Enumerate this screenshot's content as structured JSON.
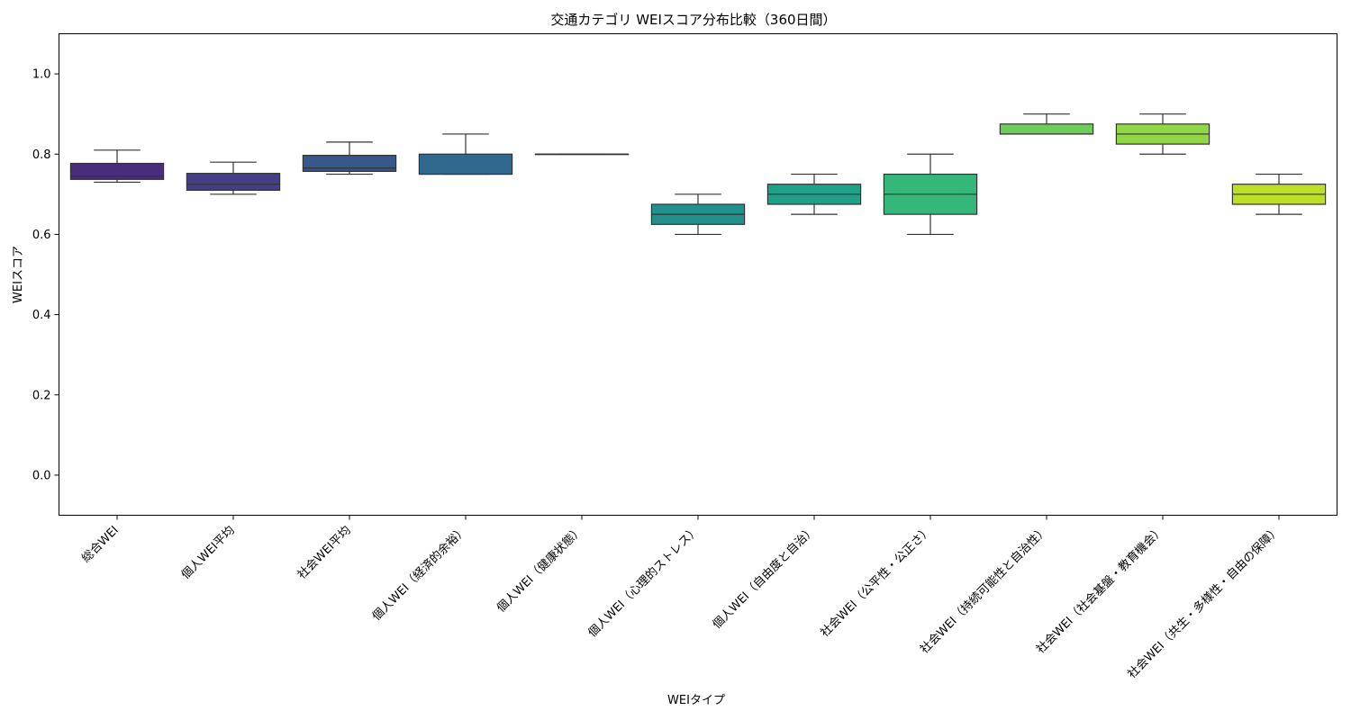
{
  "chart_data": {
    "type": "box",
    "title": "交通カテゴリ WEIスコア分布比較（360日間）",
    "xlabel": "WEIタイプ",
    "ylabel": "WEIスコア",
    "ylim": [
      -0.1,
      1.1
    ],
    "yticks": [
      "0.0",
      "0.2",
      "0.4",
      "0.6",
      "0.8",
      "1.0"
    ],
    "grid": false,
    "categories": [
      "総合WEI",
      "個人WEI平均",
      "社会WEI平均",
      "個人WEI（経済的余裕）",
      "個人WEI（健康状態）",
      "個人WEI（心理的ストレス）",
      "個人WEI（自由度と自治）",
      "社会WEI（公平性・公正さ）",
      "社会WEI（持続可能性と自治性）",
      "社会WEI（社会基盤・教育機会）",
      "社会WEI（共生・多様性・自由の保障）"
    ],
    "boxes": [
      {
        "min": 0.73,
        "q1": 0.737,
        "median": 0.745,
        "q3": 0.777,
        "max": 0.81,
        "color": "#472d7b"
      },
      {
        "min": 0.7,
        "q1": 0.71,
        "median": 0.725,
        "q3": 0.752,
        "max": 0.78,
        "color": "#433e85"
      },
      {
        "min": 0.75,
        "q1": 0.757,
        "median": 0.765,
        "q3": 0.797,
        "max": 0.83,
        "color": "#38588c"
      },
      {
        "min": 0.75,
        "q1": 0.75,
        "median": 0.75,
        "q3": 0.8,
        "max": 0.85,
        "color": "#31688e"
      },
      {
        "min": 0.8,
        "q1": 0.8,
        "median": 0.8,
        "q3": 0.8,
        "max": 0.8,
        "color": "#2a788e"
      },
      {
        "min": 0.6,
        "q1": 0.625,
        "median": 0.65,
        "q3": 0.675,
        "max": 0.7,
        "color": "#21918c"
      },
      {
        "min": 0.65,
        "q1": 0.675,
        "median": 0.7,
        "q3": 0.725,
        "max": 0.75,
        "color": "#1fa088"
      },
      {
        "min": 0.6,
        "q1": 0.65,
        "median": 0.7,
        "q3": 0.75,
        "max": 0.8,
        "color": "#35b779"
      },
      {
        "min": 0.85,
        "q1": 0.85,
        "median": 0.85,
        "q3": 0.875,
        "max": 0.9,
        "color": "#6ccd5a"
      },
      {
        "min": 0.8,
        "q1": 0.825,
        "median": 0.85,
        "q3": 0.875,
        "max": 0.9,
        "color": "#8fd744"
      },
      {
        "min": 0.65,
        "q1": 0.675,
        "median": 0.7,
        "q3": 0.725,
        "max": 0.75,
        "color": "#bddf26"
      }
    ]
  }
}
